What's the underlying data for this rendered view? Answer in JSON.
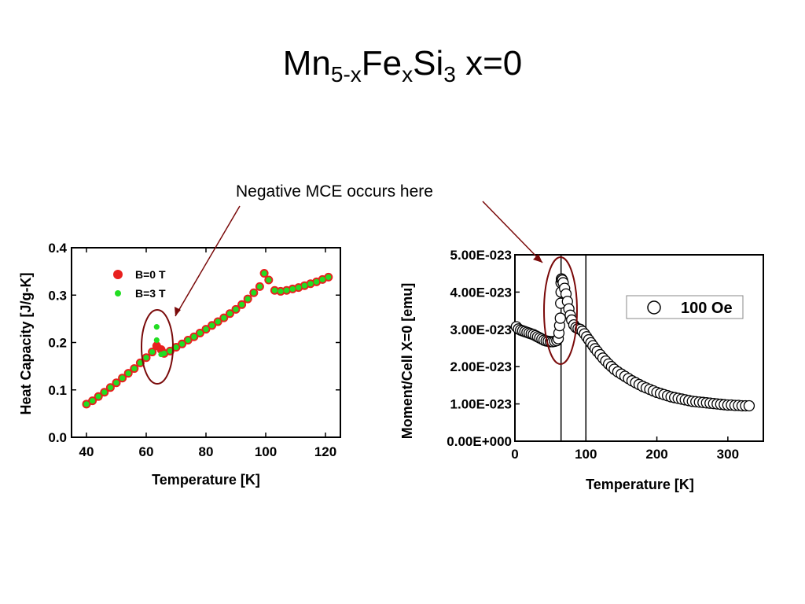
{
  "slide": {
    "title_parts": [
      "Mn",
      "5-x",
      "Fe",
      "x",
      "Si",
      "3",
      " x=0"
    ],
    "annotation": "Negative MCE occurs here"
  },
  "colors": {
    "b0": "#e8201e",
    "b3": "#22dd22",
    "circle_highlight": "#7a0a0a",
    "arrow": "#7a0a0a"
  },
  "chart_data": [
    {
      "type": "scatter",
      "title": "",
      "xlabel": "Temperature [K]",
      "ylabel": "Heat Capacity [J/g-K]",
      "xlim": [
        35,
        125
      ],
      "ylim": [
        0.0,
        0.4
      ],
      "xticks": [
        40,
        60,
        80,
        100,
        120
      ],
      "xtick_labels": [
        "40",
        "60",
        "80",
        "100",
        "120"
      ],
      "yticks": [
        0.0,
        0.1,
        0.2,
        0.3,
        0.4
      ],
      "ytick_labels": [
        "0.0",
        "0.1",
        "0.2",
        "0.3",
        "0.4"
      ],
      "legend_position": "top-left",
      "series": [
        {
          "name": "B=0 T",
          "x": [
            40,
            42,
            44,
            46,
            48,
            50,
            52,
            54,
            56,
            58,
            60,
            62,
            63.5,
            65,
            66,
            68,
            70,
            72,
            74,
            76,
            78,
            80,
            82,
            84,
            86,
            88,
            90,
            92,
            94,
            96,
            98,
            99.5,
            101,
            103,
            105,
            107,
            109,
            111,
            113,
            115,
            117,
            119,
            121
          ],
          "y": [
            0.07,
            0.077,
            0.086,
            0.095,
            0.105,
            0.115,
            0.125,
            0.135,
            0.145,
            0.157,
            0.168,
            0.18,
            0.193,
            0.185,
            0.177,
            0.182,
            0.19,
            0.197,
            0.205,
            0.212,
            0.22,
            0.228,
            0.236,
            0.244,
            0.252,
            0.261,
            0.27,
            0.28,
            0.292,
            0.305,
            0.318,
            0.346,
            0.332,
            0.31,
            0.308,
            0.31,
            0.313,
            0.316,
            0.32,
            0.324,
            0.328,
            0.333,
            0.338
          ]
        },
        {
          "name": "B=3 T",
          "x": [
            40,
            42,
            44,
            46,
            48,
            50,
            52,
            54,
            56,
            58,
            60,
            62,
            63.5,
            63.5,
            65,
            66,
            68,
            70,
            72,
            74,
            76,
            78,
            80,
            82,
            84,
            86,
            88,
            90,
            92,
            94,
            96,
            98,
            99.5,
            101,
            103,
            105,
            107,
            109,
            111,
            113,
            115,
            117,
            119,
            121
          ],
          "y": [
            0.07,
            0.077,
            0.086,
            0.095,
            0.105,
            0.115,
            0.125,
            0.135,
            0.145,
            0.157,
            0.168,
            0.18,
            0.233,
            0.205,
            0.175,
            0.177,
            0.182,
            0.19,
            0.197,
            0.205,
            0.212,
            0.22,
            0.228,
            0.236,
            0.244,
            0.252,
            0.261,
            0.27,
            0.28,
            0.292,
            0.305,
            0.318,
            0.346,
            0.332,
            0.31,
            0.308,
            0.31,
            0.313,
            0.316,
            0.32,
            0.324,
            0.328,
            0.333,
            0.338
          ]
        }
      ]
    },
    {
      "type": "scatter",
      "title": "",
      "xlabel": "Temperature [K]",
      "ylabel": "Moment/Cell X=0 [emu]",
      "xlim": [
        0,
        350
      ],
      "ylim": [
        0.0,
        5e-23
      ],
      "xticks": [
        0,
        100,
        200,
        300
      ],
      "xtick_labels": [
        "0",
        "100",
        "200",
        "300"
      ],
      "yticks": [
        0.0,
        1e-23,
        2e-23,
        3e-23,
        4e-23,
        5e-23
      ],
      "ytick_labels": [
        "0.00E+000",
        "1.00E-023",
        "2.00E-023",
        "3.00E-023",
        "4.00E-023",
        "5.00E-023"
      ],
      "vlines": [
        65,
        100
      ],
      "legend_position": "top-right",
      "series": [
        {
          "name": "100 Oe",
          "x": [
            2,
            5,
            8,
            11,
            14,
            17,
            20,
            23,
            26,
            29,
            32,
            35,
            38,
            41,
            44,
            47,
            50,
            53,
            56,
            59,
            61,
            62,
            63,
            64,
            64.5,
            65,
            65,
            65.5,
            66,
            67,
            68,
            70,
            72,
            74,
            76,
            78,
            80,
            83,
            86,
            89,
            92,
            95,
            98,
            101,
            104,
            107,
            110,
            113,
            116,
            120,
            124,
            128,
            132,
            136,
            140,
            145,
            150,
            155,
            160,
            165,
            170,
            175,
            180,
            185,
            190,
            195,
            200,
            205,
            210,
            215,
            220,
            225,
            230,
            235,
            240,
            245,
            250,
            255,
            260,
            265,
            270,
            275,
            280,
            285,
            290,
            295,
            300,
            305,
            310,
            315,
            320,
            325,
            330
          ],
          "y": [
            3.07e-23,
            3.01e-23,
            2.98e-23,
            2.96e-23,
            2.94e-23,
            2.92e-23,
            2.9e-23,
            2.88e-23,
            2.86e-23,
            2.83e-23,
            2.8e-23,
            2.77e-23,
            2.74e-23,
            2.71e-23,
            2.69e-23,
            2.68e-23,
            2.67e-23,
            2.67e-23,
            2.68e-23,
            2.7e-23,
            2.75e-23,
            2.9e-23,
            3.1e-23,
            3.3e-23,
            3.7e-23,
            4e-23,
            4.25e-23,
            4.35e-23,
            4.35e-23,
            4.32e-23,
            4.25e-23,
            4.1e-23,
            3.95e-23,
            3.75e-23,
            3.55e-23,
            3.38e-23,
            3.25e-23,
            3.12e-23,
            3.05e-23,
            3.02e-23,
            3e-23,
            2.95e-23,
            2.88e-23,
            2.8e-23,
            2.72e-23,
            2.64e-23,
            2.56e-23,
            2.48e-23,
            2.41e-23,
            2.32e-23,
            2.23e-23,
            2.15e-23,
            2.07e-23,
            2e-23,
            1.93e-23,
            1.86e-23,
            1.8e-23,
            1.74e-23,
            1.68e-23,
            1.62e-23,
            1.57e-23,
            1.52e-23,
            1.47e-23,
            1.43e-23,
            1.39e-23,
            1.35e-23,
            1.31e-23,
            1.28e-23,
            1.25e-23,
            1.22e-23,
            1.19e-23,
            1.17e-23,
            1.15e-23,
            1.13e-23,
            1.11e-23,
            1.09e-23,
            1.07e-23,
            1.06e-23,
            1.05e-23,
            1.04e-23,
            1.03e-23,
            1.02e-23,
            1.01e-23,
            1e-23,
            9.9e-24,
            9.8e-24,
            9.7e-24,
            9.7e-24,
            9.6e-24,
            9.6e-24,
            9.5e-24,
            9.5e-24,
            9.5e-24
          ]
        }
      ]
    }
  ]
}
